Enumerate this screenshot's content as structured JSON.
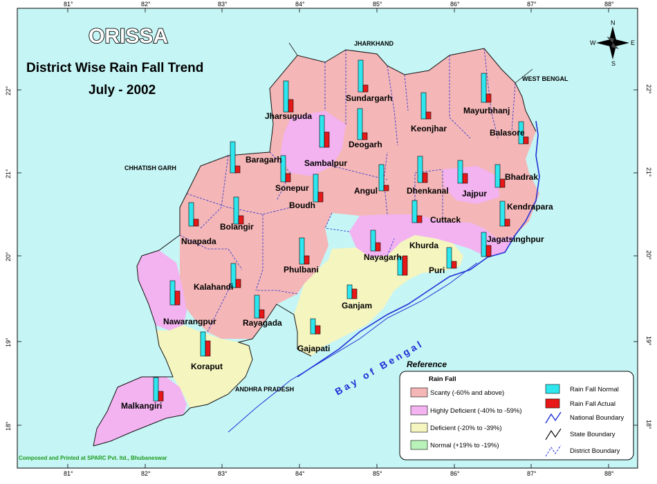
{
  "map": {
    "title": "ORISSA",
    "subtitle_line1": "District Wise Rain Fall Trend",
    "subtitle_line2": "July - 2002",
    "credit": "Composed and Printed at SPARC Pvt. ltd., Bhubaneswar",
    "sea_label": "Bay of Bengal"
  },
  "compass": {
    "n": "N",
    "s": "S",
    "e": "E",
    "w": "W"
  },
  "neighbors": {
    "jharkhand": "JHARKHAND",
    "west_bengal": "WEST BENGAL",
    "chhatisgarh": "CHHATISH GARH",
    "andhra": "ANDHRA PRADESH"
  },
  "axes": {
    "lon_ticks": [
      "81°",
      "82°",
      "83°",
      "84°",
      "85°",
      "86°",
      "87°",
      "88°"
    ],
    "lat_ticks": [
      "22°",
      "21°",
      "20°",
      "19°",
      "18°"
    ]
  },
  "colors": {
    "scanty": "#f4b6b6",
    "highly_deficient": "#f3b2f0",
    "deficient": "#f5f5c0",
    "normal": "#b9f2b9",
    "bar_normal": "#2ee6ee",
    "bar_actual": "#e81818",
    "boundary": "#1e2fd6",
    "background": "#c6f5f5"
  },
  "legend": {
    "title": "Reference",
    "subtitle": "Rain Fall",
    "scanty": "Scanty (-60% and above)",
    "highly_deficient": "Highly Deficient (-40% to -59%)",
    "deficient": "Deficient (-20% to -39%)",
    "normal": "Normal (+19% to -19%)",
    "rf_normal": "Rain Fall Normal",
    "rf_actual": "Rain Fall Actual",
    "national": "National Boundary",
    "state": "State Boundary",
    "district": "District Boundary"
  },
  "districts": [
    {
      "name": "Jharsuguda",
      "category": "scanty"
    },
    {
      "name": "Sundargarh",
      "category": "scanty"
    },
    {
      "name": "Keonjhar",
      "category": "scanty"
    },
    {
      "name": "Mayurbhanj",
      "category": "scanty"
    },
    {
      "name": "Deogarh",
      "category": "scanty"
    },
    {
      "name": "Sambalpur",
      "category": "highly_deficient"
    },
    {
      "name": "Baragarh",
      "category": "scanty"
    },
    {
      "name": "Balasore",
      "category": "scanty"
    },
    {
      "name": "Sonepur",
      "category": "scanty"
    },
    {
      "name": "Angul",
      "category": "scanty"
    },
    {
      "name": "Dhenkanal",
      "category": "scanty"
    },
    {
      "name": "Jajpur",
      "category": "highly_deficient"
    },
    {
      "name": "Bhadrak",
      "category": "scanty"
    },
    {
      "name": "Boudh",
      "category": "scanty"
    },
    {
      "name": "Kendrapara",
      "category": "scanty"
    },
    {
      "name": "Nuapada",
      "category": "scanty"
    },
    {
      "name": "Bolangir",
      "category": "scanty"
    },
    {
      "name": "Cuttack",
      "category": "highly_deficient"
    },
    {
      "name": "Jagatsinghpur",
      "category": "highly_deficient"
    },
    {
      "name": "Khurda",
      "category": "deficient"
    },
    {
      "name": "Nayagarh",
      "category": "highly_deficient"
    },
    {
      "name": "Phulbani",
      "category": "scanty"
    },
    {
      "name": "Puri",
      "category": "deficient"
    },
    {
      "name": "Kalahandi",
      "category": "scanty"
    },
    {
      "name": "Ganjam",
      "category": "deficient"
    },
    {
      "name": "Nawarangpur",
      "category": "highly_deficient"
    },
    {
      "name": "Rayagada",
      "category": "scanty"
    },
    {
      "name": "Gajapati",
      "category": "deficient"
    },
    {
      "name": "Koraput",
      "category": "deficient"
    },
    {
      "name": "Malkangiri",
      "category": "highly_deficient"
    }
  ]
}
